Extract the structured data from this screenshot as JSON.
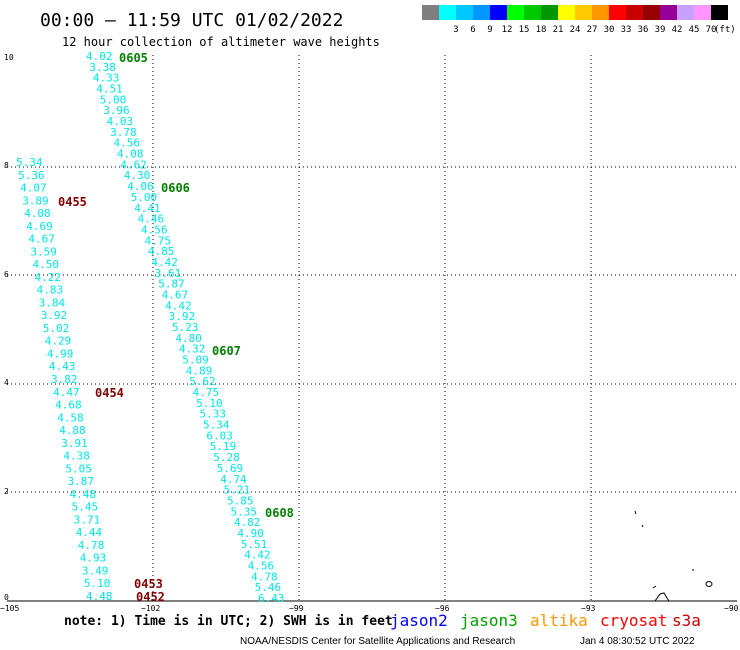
{
  "header": {
    "title": "00:00 – 11:59 UTC 01/02/2022",
    "subtitle": "12 hour collection of altimeter wave heights"
  },
  "legend": {
    "unit": "(ft)",
    "swatches": [
      {
        "color": "#7f7f7f",
        "value": ""
      },
      {
        "color": "#00ffff",
        "value": "3"
      },
      {
        "color": "#00c8ff",
        "value": "6"
      },
      {
        "color": "#0096ff",
        "value": "9"
      },
      {
        "color": "#0000ff",
        "value": "12"
      },
      {
        "color": "#00ff00",
        "value": "15"
      },
      {
        "color": "#00c800",
        "value": "18"
      },
      {
        "color": "#009600",
        "value": "21"
      },
      {
        "color": "#ffff00",
        "value": "24"
      },
      {
        "color": "#ffc800",
        "value": "27"
      },
      {
        "color": "#ff9600",
        "value": "30"
      },
      {
        "color": "#ff0000",
        "value": "33"
      },
      {
        "color": "#c80000",
        "value": "36"
      },
      {
        "color": "#960000",
        "value": "39"
      },
      {
        "color": "#960096",
        "value": "42"
      },
      {
        "color": "#c8a0ff",
        "value": "45"
      },
      {
        "color": "#ff96ff",
        "value": "70"
      },
      {
        "color": "#000000",
        "value": ""
      }
    ]
  },
  "axes": {
    "x_ticks": [
      "−105",
      "−102",
      "−99",
      "−96",
      "−93",
      "−90"
    ],
    "y_ticks": [
      "0",
      "2",
      "4",
      "6",
      "8",
      "10"
    ]
  },
  "tracks": [
    {
      "color": "#00e6e6",
      "values": [
        "5.34",
        "5.36",
        "4.07",
        "3.89",
        "4.08",
        "4.69",
        "4.67",
        "3.59",
        "4.50",
        "4.22",
        "4.83",
        "3.84",
        "3.92",
        "5.02",
        "4.29",
        "4.99",
        "4.43",
        "3.82",
        "4.47",
        "4.68",
        "4.58",
        "4.88",
        "3.91",
        "4.38",
        "5.05",
        "3.87",
        "4.48",
        "5.45",
        "3.71",
        "4.44",
        "4.78",
        "4.93",
        "3.49",
        "5.10",
        "4.48"
      ]
    },
    {
      "color": "#00e6e6",
      "values": [
        "4.02",
        "3.38",
        "4.33",
        "4.51",
        "5.00",
        "3.96",
        "4.03",
        "3.78",
        "4.56",
        "4.08",
        "4.62",
        "4.30",
        "4.06",
        "5.00",
        "4.41",
        "4.46",
        "4.56",
        "4.75",
        "4.85",
        "4.42",
        "3.61",
        "5.87",
        "4.67",
        "4.42",
        "3.92",
        "5.23",
        "4.80",
        "4.32",
        "5.09",
        "4.89",
        "5.62",
        "4.75",
        "5.10",
        "5.33",
        "5.34",
        "6.03",
        "5.19",
        "5.28",
        "5.69",
        "4.74",
        "5.21",
        "5.85",
        "5.35",
        "4.82",
        "4.90",
        "5.51",
        "4.42",
        "4.56",
        "4.78",
        "5.46",
        "6.43"
      ]
    }
  ],
  "time_labels": [
    {
      "text": "0605",
      "color": "#008000"
    },
    {
      "text": "0606",
      "color": "#008000"
    },
    {
      "text": "0607",
      "color": "#008000"
    },
    {
      "text": "0608",
      "color": "#008000"
    },
    {
      "text": "0455",
      "color": "#800000"
    },
    {
      "text": "0454",
      "color": "#800000"
    },
    {
      "text": "0453",
      "color": "#800000"
    },
    {
      "text": "0452",
      "color": "#800000"
    }
  ],
  "footer": {
    "note": "note: 1) Time is in UTC; 2) SWH is in feet",
    "satellites": [
      {
        "name": "jason2",
        "color": "#0000ff"
      },
      {
        "name": "jason3",
        "color": "#00a000"
      },
      {
        "name": "altika",
        "color": "#ff9600"
      },
      {
        "name": "cryosat",
        "color": "#ff0000"
      },
      {
        "name": "s3a",
        "color": "#c80000"
      }
    ],
    "credit": "NOAA/NESDIS Center for Satellite Applications and Research",
    "timestamp": "Jan  4 08:30:52 UTC 2022"
  }
}
